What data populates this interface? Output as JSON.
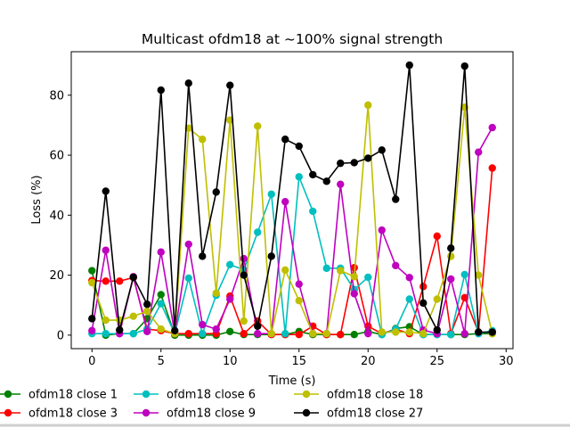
{
  "chart_data": {
    "type": "line",
    "title": "Multicast ofdm18 at ~100% signal strength",
    "xlabel": "Time (s)",
    "ylabel": "Loss (%)",
    "xlim": [
      -1.5,
      30.5
    ],
    "ylim": [
      -4.5,
      94.5
    ],
    "xticks": [
      0,
      5,
      10,
      15,
      20,
      25,
      30
    ],
    "yticks": [
      0,
      20,
      40,
      60,
      80
    ],
    "grid": false,
    "legend_placement": "below-plot",
    "x": [
      0,
      1,
      2,
      3,
      4,
      5,
      6,
      7,
      8,
      9,
      10,
      11,
      12,
      13,
      14,
      15,
      16,
      17,
      18,
      19,
      20,
      21,
      22,
      23,
      24,
      25,
      26,
      27,
      28,
      29
    ],
    "series": [
      {
        "name": "ofdm18 close 1",
        "color": "#008000",
        "values": [
          21.5,
          0,
          0.5,
          0.5,
          5.5,
          13.5,
          0,
          0,
          0,
          0,
          1.2,
          0.2,
          0.2,
          0.2,
          0.2,
          1.2,
          0.2,
          0.2,
          0.2,
          0.2,
          1.2,
          0.2,
          2.2,
          2.8,
          0.2,
          0.2,
          0.2,
          0.2,
          0.5,
          0.5
        ]
      },
      {
        "name": "ofdm18 close 3",
        "color": "#ff0000",
        "values": [
          18.2,
          18,
          18,
          19.2,
          2,
          1.5,
          0.5,
          0.5,
          0.5,
          0.5,
          13,
          0.5,
          4.7,
          0.2,
          0.2,
          0.2,
          3,
          0.2,
          0.2,
          22.5,
          3,
          0.5,
          2,
          0.5,
          16.2,
          33,
          0.5,
          12.5,
          1,
          55.7
        ]
      },
      {
        "name": "ofdm18 close 6",
        "color": "#00bfbf",
        "values": [
          0.5,
          0.5,
          0.5,
          0.5,
          2,
          10.5,
          0.5,
          19,
          0.5,
          13.3,
          23.5,
          21.8,
          34.3,
          47,
          0.5,
          52.8,
          41.3,
          22.3,
          22.3,
          15.2,
          19.3,
          0.2,
          2,
          12,
          0.2,
          0.2,
          0.2,
          20.2,
          0.5,
          1.5
        ]
      },
      {
        "name": "ofdm18 close 9",
        "color": "#bf00bf",
        "values": [
          1.5,
          28.3,
          0.5,
          19.5,
          1.2,
          27.7,
          0.5,
          30.3,
          3.5,
          2,
          12,
          25.5,
          0.5,
          0.5,
          44.5,
          17,
          0.5,
          0.5,
          50.3,
          13.8,
          0.5,
          35,
          23.2,
          19.2,
          1.7,
          0.5,
          18.7,
          0.5,
          61,
          69.2
        ]
      },
      {
        "name": "ofdm18 close 18",
        "color": "#bfbf00",
        "values": [
          17.5,
          5,
          5,
          6.3,
          8,
          2,
          0.5,
          69,
          65.3,
          14,
          71.7,
          4.7,
          69.7,
          0.5,
          21.7,
          11.5,
          0.5,
          0.5,
          21.5,
          19.5,
          76.7,
          1,
          1,
          1,
          0.5,
          12,
          26.3,
          76,
          20,
          0.5
        ]
      },
      {
        "name": "ofdm18 close 27",
        "color": "#000000",
        "values": [
          5.5,
          48,
          1.7,
          19.3,
          10.3,
          81.7,
          1.5,
          84,
          26.3,
          47.7,
          83.3,
          20,
          3,
          26.3,
          65.3,
          63,
          53.5,
          51.3,
          57.3,
          57.5,
          59,
          61.7,
          45.3,
          90,
          10.7,
          1.7,
          29,
          89.7,
          1,
          1
        ]
      }
    ]
  }
}
